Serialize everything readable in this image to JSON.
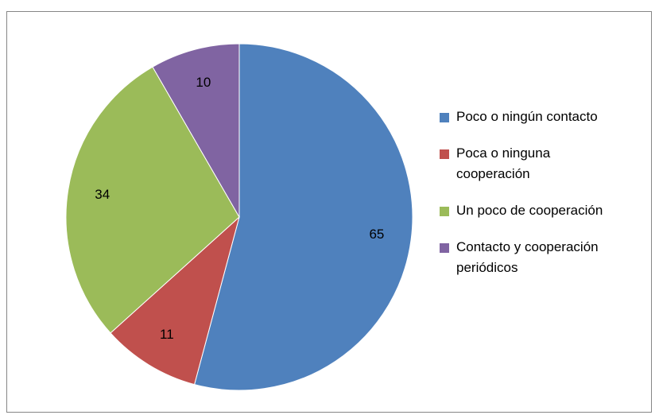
{
  "chart_data": {
    "type": "pie",
    "categories": [
      "Poco o ningún contacto",
      "Poca o ninguna cooperación",
      "Un poco de cooperación",
      "Contacto y cooperación periódicos"
    ],
    "values": [
      65,
      11,
      34,
      10
    ],
    "colors": [
      "#4f81bd",
      "#c0504d",
      "#9bbb59",
      "#8064a2"
    ],
    "legend": "right"
  }
}
